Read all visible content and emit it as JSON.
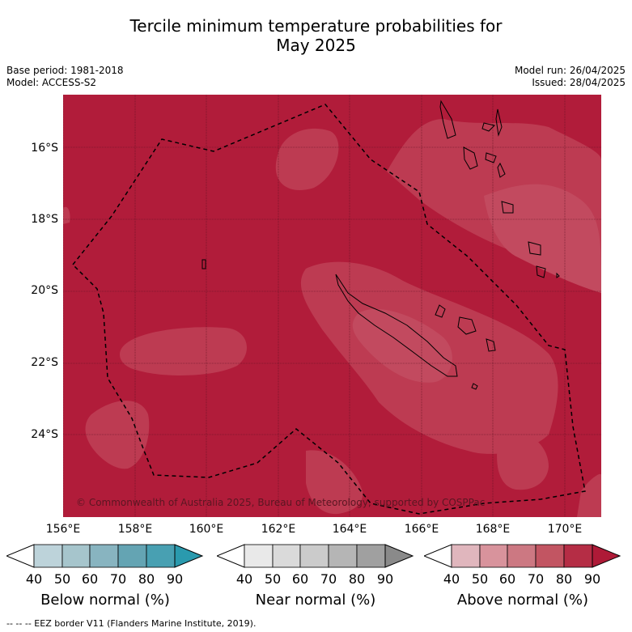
{
  "title_line1": "Tercile minimum temperature probabilities for",
  "title_line2": "May 2025",
  "base_period": "Base period: 1981-2018",
  "model": "Model: ACCESS-S2",
  "model_run": "Model run: 26/04/2025",
  "issued": "Issued: 28/04/2025",
  "copyright": "© Commonwealth of Australia 2025, Bureau of Meteorology, supported by COSPPac",
  "footer": "--  --  -- EEZ border V11 (Flanders Marine Institute, 2019).",
  "lat_labels": [
    "16°S",
    "18°S",
    "20°S",
    "22°S",
    "24°S"
  ],
  "lon_labels": [
    "156°E",
    "158°E",
    "160°E",
    "162°E",
    "164°E",
    "166°E",
    "168°E",
    "170°E"
  ],
  "colorbars": [
    {
      "title": "Below normal (%)",
      "ticks": [
        "40",
        "50",
        "60",
        "70",
        "80",
        "90"
      ],
      "colors": [
        "#ffffff",
        "#bdd3da",
        "#a6c5cc",
        "#88b4c0",
        "#64a4b3",
        "#48a0b2",
        "#2a9aae"
      ]
    },
    {
      "title": "Near normal (%)",
      "ticks": [
        "40",
        "50",
        "60",
        "70",
        "80",
        "90"
      ],
      "colors": [
        "#ffffff",
        "#e9e9e9",
        "#dadada",
        "#cbcbcb",
        "#b5b5b5",
        "#a0a0a0",
        "#8a8a8a"
      ]
    },
    {
      "title": "Above normal (%)",
      "ticks": [
        "40",
        "50",
        "60",
        "70",
        "80",
        "90"
      ],
      "colors": [
        "#ffffff",
        "#e0b6bd",
        "#d8939c",
        "#cc7882",
        "#c25562",
        "#b52d45",
        "#ae1a37"
      ]
    }
  ],
  "map_colors": {
    "dominant": "#b11c3a",
    "lighter": "#bd3b52",
    "lightest": "#c24a5f"
  }
}
